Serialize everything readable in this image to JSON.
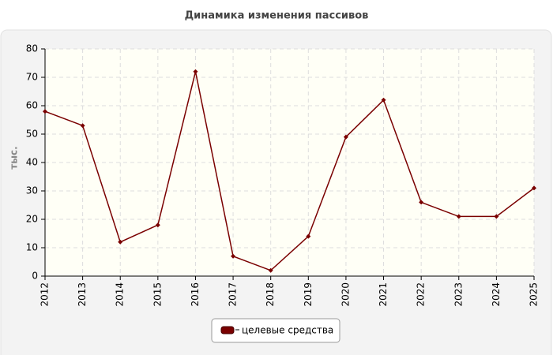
{
  "chart_data": {
    "type": "line",
    "title": "Динамика изменения пассивов",
    "ylabel": "тыс.",
    "categories": [
      "2012",
      "2013",
      "2014",
      "2015",
      "2016",
      "2017",
      "2018",
      "2019",
      "2020",
      "2021",
      "2022",
      "2023",
      "2024",
      "2025"
    ],
    "series": [
      {
        "name": "целевые средства",
        "color": "#7a0000",
        "values": [
          58,
          53,
          12,
          18,
          72,
          7,
          2,
          14,
          49,
          62,
          26,
          21,
          21,
          31
        ]
      }
    ],
    "ylim": [
      0,
      80
    ],
    "yticks": [
      0,
      10,
      20,
      30,
      40,
      50,
      60,
      70,
      80
    ],
    "grid": true,
    "legend": "bottom"
  }
}
